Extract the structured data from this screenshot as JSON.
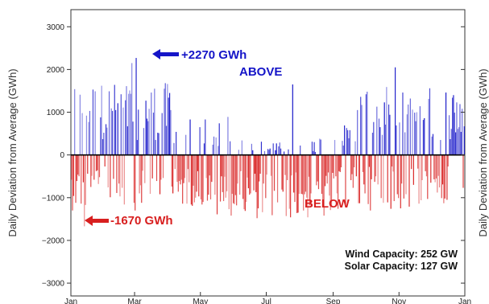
{
  "chart_data": {
    "type": "bar",
    "ylabel": "Daily Deviation from Average (GWh)",
    "ylabel_right_fragment": "Daily Deviation from Average (GWh)",
    "ylim": [
      -3300,
      3400
    ],
    "yticks": [
      3000,
      2000,
      1000,
      0,
      -1000,
      -2000,
      -3000
    ],
    "ytick_labels": [
      "3000",
      "2000",
      "1000",
      "0",
      "−1000",
      "−2000",
      "−3000"
    ],
    "xlim_days": [
      0,
      365
    ],
    "xticks": [
      {
        "label": "Jan",
        "day": 0
      },
      {
        "label": "Mar",
        "day": 59
      },
      {
        "label": "May",
        "day": 120
      },
      {
        "label": "Jul",
        "day": 181
      },
      {
        "label": "Sep",
        "day": 243
      },
      {
        "label": "Nov",
        "day": 304
      },
      {
        "label": "Jan",
        "day": 365
      }
    ],
    "above_color": "#1515c8",
    "below_color": "#d81f1f",
    "annotations": {
      "max": {
        "text": "+2270 GWh",
        "value": 2270
      },
      "min": {
        "text": "-1670 GWh",
        "value": -1670
      },
      "above_label": "ABOVE",
      "below_label": "BELOW"
    },
    "capacity": {
      "wind": "Wind Capacity: 252 GW",
      "solar": "Solar Capacity: 127 GW"
    }
  }
}
